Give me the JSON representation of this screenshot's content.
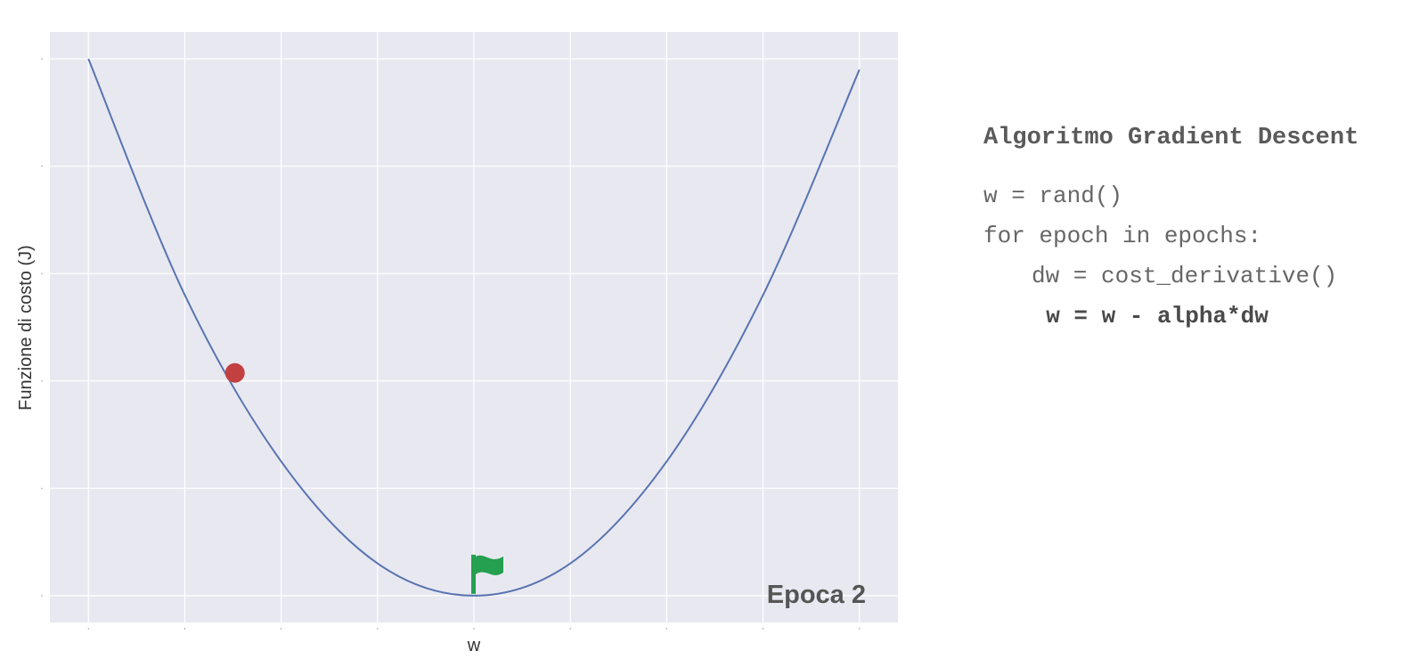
{
  "chart_data": {
    "type": "line",
    "title": "",
    "xlabel": "w",
    "ylabel": "Funzione di costo (J)",
    "xlim": [
      -4.4,
      4.4
    ],
    "ylim": [
      -0.5,
      10.5
    ],
    "x_ticks": [
      -4,
      -3,
      -2,
      -1,
      0,
      1,
      2,
      3,
      4
    ],
    "y_ticks": [
      0,
      2,
      4,
      6,
      8,
      10
    ],
    "tick_labels_visible": false,
    "grid": true,
    "background_color": "#e8e8f1",
    "series": [
      {
        "style": "curve",
        "color": "#5874b0",
        "function": "w^2",
        "x_range": [
          -4,
          4
        ],
        "sample_points": [
          {
            "x": -4,
            "y": 10
          },
          {
            "x": -3,
            "y": 5.6
          },
          {
            "x": -2,
            "y": 2.5
          },
          {
            "x": -1,
            "y": 0.6
          },
          {
            "x": 0,
            "y": 0
          },
          {
            "x": 1,
            "y": 0.6
          },
          {
            "x": 2,
            "y": 2.5
          },
          {
            "x": 3,
            "y": 5.6
          },
          {
            "x": 4,
            "y": 9.8
          }
        ]
      }
    ],
    "current_point": {
      "x": -2.48,
      "y": 4.15,
      "color": "#c24040"
    },
    "target_flag": {
      "x": 0,
      "y": 0,
      "color": "#24a050"
    },
    "annotation": "Epoca 2"
  },
  "code_panel": {
    "title": "Algoritmo Gradient Descent",
    "lines": [
      {
        "text": "w = rand()",
        "indent": 0,
        "bold": false
      },
      {
        "text": "for epoch in epochs:",
        "indent": 0,
        "bold": false
      },
      {
        "text": "dw = cost_derivative()",
        "indent": 1,
        "bold": false
      },
      {
        "text": "w = w - alpha*dw",
        "indent": 1.3,
        "bold": true
      }
    ]
  },
  "icons": {
    "point_marker": "red-circle-marker",
    "flag": "green-flag-icon"
  }
}
